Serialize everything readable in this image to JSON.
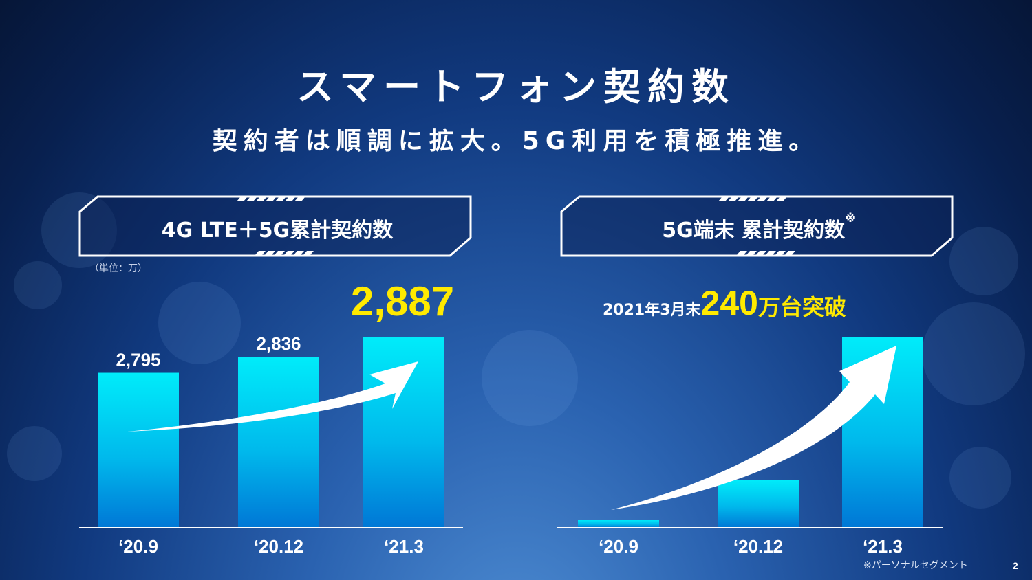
{
  "title": "スマートフォン契約数",
  "subtitle": "契約者は順調に拡大。5G利用を積極推進。",
  "left_panel": {
    "title": "4G LTE＋5G累計契約数",
    "unit": "（単位：万）",
    "callout": "2,887"
  },
  "right_panel": {
    "title": "5G端末 累計契約数",
    "title_mark": "※",
    "callout_prefix": "2021年3月末",
    "callout_number": "240",
    "callout_suffix": "万台突破"
  },
  "footnote": "※パーソナルセグメント",
  "page_number": "2",
  "colors": {
    "bar_top": "#00ecfa",
    "bar_bottom": "#0077d6",
    "callout": "#ffea00",
    "background": "#0d2f6e"
  },
  "chart_data": [
    {
      "type": "bar",
      "title": "4G LTE＋5G累計契約数",
      "unit": "万",
      "categories": [
        "‘20.9",
        "‘20.12",
        "‘21.3"
      ],
      "values": [
        2795,
        2836,
        2887
      ],
      "data_labels": [
        "2,795",
        "2,836",
        ""
      ],
      "ylim": [
        2400,
        2887
      ],
      "grid": false,
      "legend": "none"
    },
    {
      "type": "bar",
      "title": "5G端末 累計契約数",
      "categories": [
        "‘20.9",
        "‘20.12",
        "‘21.3"
      ],
      "values": [
        10,
        60,
        240
      ],
      "unit": "万",
      "ylim": [
        0,
        240
      ],
      "grid": false,
      "legend": "none"
    }
  ]
}
